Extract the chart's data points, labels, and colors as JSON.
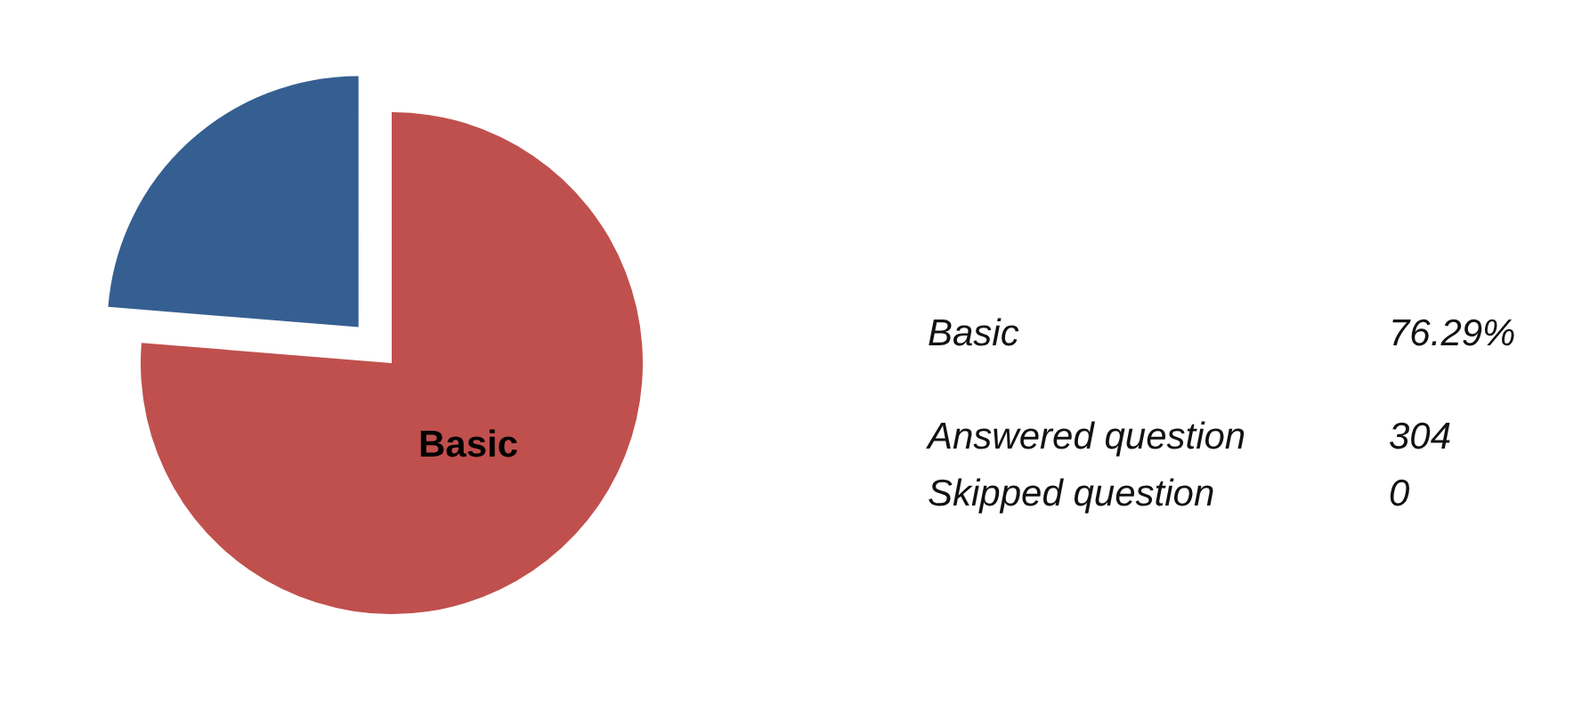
{
  "chart_data": {
    "type": "pie",
    "categories": [
      "Basic",
      null
    ],
    "values": [
      76.29,
      23.71
    ],
    "colors": [
      "#c0504d",
      "#355f91"
    ],
    "annotations": [
      "Basic",
      "76.29%",
      "Answered question",
      "304",
      "Skipped question",
      "0"
    ],
    "legend": false
  }
}
